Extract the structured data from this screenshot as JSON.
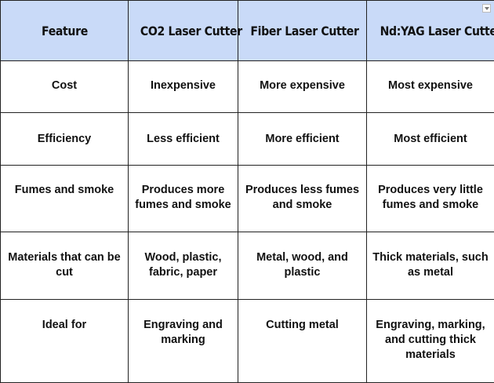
{
  "table": {
    "headers": [
      "Feature",
      "CO2 Laser Cutter",
      "Fiber Laser Cutter",
      "Nd:YAG Laser Cutter"
    ],
    "rows": [
      [
        "Cost",
        "Inexpensive",
        "More expensive",
        "Most expensive"
      ],
      [
        "Efficiency",
        "Less efficient",
        "More efficient",
        "Most efficient"
      ],
      [
        "Fumes and smoke",
        "Produces more fumes and smoke",
        "Produces less fumes and smoke",
        "Produces very little fumes and smoke"
      ],
      [
        "Materials that can be cut",
        "Wood, plastic, fabric, paper",
        "Metal, wood, and plastic",
        "Thick materials, such as metal"
      ],
      [
        "Ideal for",
        "Engraving and marking",
        "Cutting metal",
        "Engraving, marking, and cutting thick materials"
      ]
    ]
  },
  "icons": {
    "header_menu": "dropdown-arrow-icon"
  },
  "colors": {
    "header_bg": "#c9daf8",
    "border": "#222222"
  }
}
